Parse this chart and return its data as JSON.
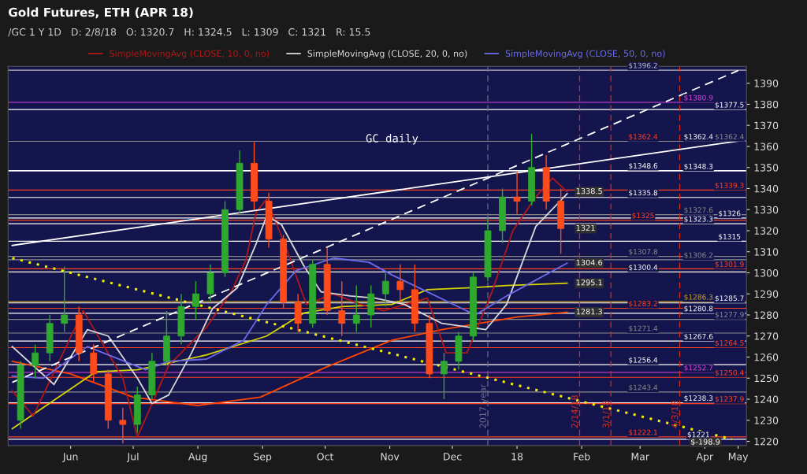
{
  "chart_data": {
    "type": "candlestick",
    "title": "Gold Futures, ETH (APR 18)",
    "subtitle": "/GC 1 Y 1D   D: 2/8/18   O: 1320.7   H: 1324.5   L: 1309   C: 1321   R: 15.5",
    "x": [
      "2017-05-22",
      "2017-05-29",
      "2017-06-05",
      "2017-06-12",
      "2017-06-19",
      "2017-06-26",
      "2017-07-03",
      "2017-07-10",
      "2017-07-17",
      "2017-07-24",
      "2017-07-31",
      "2017-08-07",
      "2017-08-14",
      "2017-08-21",
      "2017-08-28",
      "2017-09-04",
      "2017-09-11",
      "2017-09-18",
      "2017-09-25",
      "2017-10-02",
      "2017-10-09",
      "2017-10-16",
      "2017-10-23",
      "2017-10-30",
      "2017-11-06",
      "2017-11-13",
      "2017-11-20",
      "2017-11-27",
      "2017-12-04",
      "2017-12-11",
      "2017-12-18",
      "2017-12-25",
      "2018-01-01",
      "2018-01-08",
      "2018-01-15",
      "2018-01-22",
      "2018-01-29",
      "2018-02-05"
    ],
    "ohlc": [
      [
        1230,
        1258,
        1226,
        1256
      ],
      [
        1256,
        1266,
        1250,
        1262
      ],
      [
        1262,
        1280,
        1258,
        1276
      ],
      [
        1276,
        1303,
        1272,
        1280
      ],
      [
        1280,
        1284,
        1258,
        1262
      ],
      [
        1262,
        1266,
        1248,
        1252
      ],
      [
        1252,
        1254,
        1226,
        1230
      ],
      [
        1230,
        1236,
        1219,
        1228
      ],
      [
        1228,
        1246,
        1224,
        1242
      ],
      [
        1242,
        1262,
        1240,
        1258
      ],
      [
        1258,
        1282,
        1256,
        1270
      ],
      [
        1270,
        1290,
        1266,
        1284
      ],
      [
        1284,
        1296,
        1278,
        1290
      ],
      [
        1290,
        1304,
        1286,
        1300
      ],
      [
        1300,
        1334,
        1298,
        1330
      ],
      [
        1330,
        1358,
        1328,
        1352
      ],
      [
        1352,
        1362,
        1330,
        1334
      ],
      [
        1334,
        1338,
        1312,
        1316
      ],
      [
        1316,
        1318,
        1283,
        1286
      ],
      [
        1286,
        1290,
        1272,
        1276
      ],
      [
        1276,
        1306,
        1274,
        1304
      ],
      [
        1304,
        1312,
        1280,
        1282
      ],
      [
        1282,
        1296,
        1270,
        1276
      ],
      [
        1276,
        1294,
        1272,
        1280
      ],
      [
        1280,
        1294,
        1274,
        1290
      ],
      [
        1290,
        1300,
        1284,
        1296
      ],
      [
        1296,
        1304,
        1286,
        1292
      ],
      [
        1292,
        1304,
        1272,
        1276
      ],
      [
        1276,
        1280,
        1250,
        1252
      ],
      [
        1252,
        1262,
        1240,
        1258
      ],
      [
        1258,
        1272,
        1254,
        1270
      ],
      [
        1270,
        1300,
        1268,
        1298
      ],
      [
        1298,
        1326,
        1296,
        1320
      ],
      [
        1320,
        1340,
        1314,
        1336
      ],
      [
        1336,
        1348,
        1328,
        1334
      ],
      [
        1334,
        1366,
        1332,
        1350
      ],
      [
        1350,
        1356,
        1330,
        1334
      ],
      [
        1334,
        1340,
        1309,
        1321
      ]
    ],
    "colors": [
      "#2fa82f",
      "#2fa82f",
      "#2fa82f",
      "#2fa82f",
      "#ff4a1a",
      "#ff4a1a",
      "#ff4a1a",
      "#ff4a1a",
      "#2fa82f",
      "#2fa82f",
      "#2fa82f",
      "#2fa82f",
      "#2fa82f",
      "#2fa82f",
      "#2fa82f",
      "#2fa82f",
      "#ff4a1a",
      "#ff4a1a",
      "#ff4a1a",
      "#ff4a1a",
      "#2fa82f",
      "#ff4a1a",
      "#ff4a1a",
      "#2fa82f",
      "#2fa82f",
      "#2fa82f",
      "#ff4a1a",
      "#ff4a1a",
      "#ff4a1a",
      "#2fa82f",
      "#2fa82f",
      "#2fa82f",
      "#2fa82f",
      "#2fa82f",
      "#ff4a1a",
      "#2fa82f",
      "#ff4a1a",
      "#ff4a1a"
    ],
    "series": [
      {
        "type": "line",
        "color": "#ff4500",
        "line_style": "solid",
        "x": [
          "2017-05-18",
          "2017-06-15",
          "2017-07-15",
          "2017-08-15",
          "2017-09-14",
          "2017-10-15",
          "2017-11-16",
          "2017-12-10",
          "2018-01-15",
          "2018-02-08"
        ],
        "values": [
          1258,
          1252,
          1241,
          1237,
          1241,
          1255,
          1268,
          1273,
          1279,
          1281.3
        ]
      },
      {
        "type": "line",
        "color": "#d4d400",
        "line_style": "solid",
        "x": [
          "2017-05-18",
          "2017-06-27",
          "2017-07-17",
          "2017-08-19",
          "2017-09-17",
          "2017-10-05",
          "2017-10-23",
          "2017-11-16",
          "2017-12-03",
          "2017-12-26",
          "2018-01-10",
          "2018-02-08"
        ],
        "values": [
          1226,
          1253,
          1254,
          1261,
          1270,
          1281,
          1284,
          1285,
          1292,
          1293,
          1294,
          1295.1
        ]
      },
      {
        "type": "line",
        "name": "SimpleMovingAvg (CLOSE, 10, 0, no)",
        "color": "#b01818",
        "line_style": "solid",
        "x": [
          "2017-05-18",
          "2017-05-28",
          "2017-06-21",
          "2017-07-10",
          "2017-07-17",
          "2017-08-01",
          "2017-08-19",
          "2017-08-31",
          "2017-09-07",
          "2017-09-12",
          "2017-09-17",
          "2017-09-27",
          "2017-10-06",
          "2017-10-19",
          "2017-11-01",
          "2017-11-12",
          "2017-12-03",
          "2017-12-12",
          "2017-12-22",
          "2018-01-03",
          "2018-01-13",
          "2018-01-24",
          "2018-02-01",
          "2018-02-08"
        ],
        "values": [
          1244,
          1232,
          1282,
          1250,
          1222,
          1256,
          1274,
          1291,
          1306,
          1329,
          1335,
          1310,
          1285,
          1290,
          1285,
          1282,
          1288,
          1262,
          1262,
          1291,
          1320,
          1336,
          1345,
          1338.5
        ]
      },
      {
        "type": "line",
        "name": "SimpleMovingAvg (CLOSE, 20, 0, no)",
        "color": "#d8d8d8",
        "line_style": "solid",
        "x": [
          "2017-05-18",
          "2017-06-07",
          "2017-06-23",
          "2017-07-03",
          "2017-07-17",
          "2017-07-24",
          "2017-08-01",
          "2017-08-12",
          "2017-08-22",
          "2017-09-03",
          "2017-09-12",
          "2017-09-17",
          "2017-09-24",
          "2017-10-05",
          "2017-10-13",
          "2017-10-27",
          "2017-11-08",
          "2017-11-22",
          "2017-12-10",
          "2017-12-31",
          "2018-01-10",
          "2018-01-24",
          "2018-02-08"
        ],
        "values": [
          1265,
          1247,
          1273,
          1270,
          1250,
          1238,
          1242,
          1262,
          1283,
          1293,
          1314,
          1327,
          1323,
          1303,
          1291,
          1289,
          1288,
          1285,
          1276,
          1273,
          1285,
          1322,
          1337.5
        ]
      },
      {
        "type": "line",
        "name": "SimpleMovingAvg (CLOSE, 50, 0, no)",
        "color": "#6a6ae8",
        "line_style": "solid",
        "x": [
          "2017-05-18",
          "2017-06-02",
          "2017-06-23",
          "2017-07-21",
          "2017-08-01",
          "2017-08-19",
          "2017-09-06",
          "2017-09-17",
          "2017-10-01",
          "2017-10-19",
          "2017-11-05",
          "2017-11-16",
          "2017-12-03",
          "2017-12-26",
          "2018-01-10",
          "2018-02-08"
        ],
        "values": [
          1251,
          1250,
          1265,
          1254,
          1258,
          1259,
          1268,
          1285,
          1301,
          1307,
          1305,
          1299,
          1291,
          1280,
          1289,
          1304.6
        ]
      },
      {
        "type": "line",
        "color": "#f0f000",
        "line_style": "dotted",
        "x": [
          "2017-05-18",
          "2018-04-28"
        ],
        "values": [
          1307,
          1221
        ]
      },
      {
        "type": "line",
        "color": "#ffffff",
        "line_style": "dashed",
        "x": [
          "2017-05-18",
          "2018-05-01"
        ],
        "values": [
          1248,
          1396
        ]
      },
      {
        "type": "line",
        "color": "#ffffff",
        "line_style": "solid",
        "x": [
          "2017-05-18",
          "2018-05-04"
        ],
        "values": [
          1313,
          1363
        ]
      }
    ],
    "ref_lines": [
      {
        "axis": "y",
        "value": 1396.2,
        "label": "$1396.2",
        "color": "#bbbbbb"
      },
      {
        "axis": "y",
        "value": 1380.9,
        "label": "$1380.9",
        "color": "#e040e0"
      },
      {
        "axis": "y",
        "value": 1377.5,
        "label": "$1377.5",
        "color": "#ffffff"
      },
      {
        "axis": "y",
        "value": 1362.4,
        "label": "$1362.4",
        "color": "#ff4020"
      },
      {
        "axis": "y",
        "value": 1362.4,
        "label": "$1362.4",
        "color": "#ffffff"
      },
      {
        "axis": "y",
        "value": 1362.4,
        "label": "$1362.4",
        "color": "#8a8a8a"
      },
      {
        "axis": "y",
        "value": 1348.6,
        "label": "$1348.6",
        "color": "#ffffff"
      },
      {
        "axis": "y",
        "value": 1348.3,
        "label": "$1348.3",
        "color": "#ffffff"
      },
      {
        "axis": "y",
        "value": 1339.3,
        "label": "$1339.3",
        "color": "#ff4020"
      },
      {
        "axis": "y",
        "value": 1335.8,
        "label": "$1335.8",
        "color": "#ffffff"
      },
      {
        "axis": "y",
        "value": 1327.6,
        "label": "$1327.6",
        "color": "#8a8a8a"
      },
      {
        "axis": "y",
        "value": 1326,
        "label": "$1326",
        "color": "#ffffff"
      },
      {
        "axis": "y",
        "value": 1325,
        "label": "$1325",
        "color": "#ff4020"
      },
      {
        "axis": "y",
        "value": 1323.3,
        "label": "$1323.3",
        "color": "#ffffff"
      },
      {
        "axis": "y",
        "value": 1315,
        "label": "$1315",
        "color": "#ffffff"
      },
      {
        "axis": "y",
        "value": 1307.8,
        "label": "$1307.8",
        "color": "#8a8a8a"
      },
      {
        "axis": "y",
        "value": 1306.2,
        "label": "$1306.2",
        "color": "#8a8a8a"
      },
      {
        "axis": "y",
        "value": 1301.9,
        "label": "$1301.9",
        "color": "#ff4020"
      },
      {
        "axis": "y",
        "value": 1300.4,
        "label": "$1300.4",
        "color": "#ffffff"
      },
      {
        "axis": "y",
        "value": 1286.3,
        "label": "$1286.3",
        "color": "#c8a020"
      },
      {
        "axis": "y",
        "value": 1285.7,
        "label": "$1285.7",
        "color": "#ffffff"
      },
      {
        "axis": "y",
        "value": 1283.2,
        "label": "$1283.2",
        "color": "#ff4020"
      },
      {
        "axis": "y",
        "value": 1280.8,
        "label": "$1280.8",
        "color": "#ffffff"
      },
      {
        "axis": "y",
        "value": 1277.9,
        "label": "$1277.9",
        "color": "#8a8a8a"
      },
      {
        "axis": "y",
        "value": 1271.4,
        "label": "$1271.4",
        "color": "#8a8a8a"
      },
      {
        "axis": "y",
        "value": 1267.6,
        "label": "$1267.6",
        "color": "#ffffff"
      },
      {
        "axis": "y",
        "value": 1264.5,
        "label": "$1264.5",
        "color": "#ff4020"
      },
      {
        "axis": "y",
        "value": 1256.4,
        "label": "$1256.4",
        "color": "#ffffff"
      },
      {
        "axis": "y",
        "value": 1252.7,
        "label": "$1252.7",
        "color": "#e040e0"
      },
      {
        "axis": "y",
        "value": 1250.4,
        "label": "$1250.4",
        "color": "#ff4020"
      },
      {
        "axis": "y",
        "value": 1243.4,
        "label": "$1243.4",
        "color": "#8a8a8a"
      },
      {
        "axis": "y",
        "value": 1238.3,
        "label": "$1238.3",
        "color": "#ffffff"
      },
      {
        "axis": "y",
        "value": 1237.9,
        "label": "$1237.9",
        "color": "#ff4020"
      },
      {
        "axis": "y",
        "value": 1222.1,
        "label": "$1222.1",
        "color": "#ff4020"
      },
      {
        "axis": "y",
        "value": 1221,
        "label": "$1221",
        "color": "#ffffff"
      },
      {
        "axis": "x",
        "value": "2018-01-01",
        "label": "2017 year",
        "color": "#6a6a8a",
        "line_style": "dashed"
      },
      {
        "axis": "x",
        "value": "2018-02-14",
        "label": "2/14/18",
        "color": "#d03020",
        "line_style": "dashed"
      },
      {
        "axis": "x",
        "value": "2018-03-01",
        "label": "3/1/18",
        "color": "#d03020",
        "line_style": "dashed"
      },
      {
        "axis": "x",
        "value": "2018-04-03",
        "label": "4/3/18",
        "color": "#d03020",
        "line_style": "dashed"
      }
    ],
    "annotations": [
      "GC daily",
      {
        "text": "1338.5",
        "x": "2018-02-08",
        "y": 1338.5
      },
      {
        "text": "1321",
        "x": "2018-02-08",
        "y": 1321
      },
      {
        "text": "1304.6",
        "x": "2018-02-08",
        "y": 1304.6
      },
      {
        "text": "1295.1",
        "x": "2018-02-08",
        "y": 1295.1
      },
      {
        "text": "1281.3",
        "x": "2018-02-08",
        "y": 1281.3
      },
      {
        "text": "$-198.9",
        "x": "2018-04-04",
        "y": 1219.5
      }
    ],
    "xlim": [
      "2017-05-16",
      "2018-05-05"
    ],
    "xticks": [
      {
        "value": "2017-06-15",
        "label": "Jun"
      },
      {
        "value": "2017-07-15",
        "label": "Jul"
      },
      {
        "value": "2017-08-15",
        "label": "Aug"
      },
      {
        "value": "2017-09-15",
        "label": "Sep"
      },
      {
        "value": "2017-10-15",
        "label": "Oct"
      },
      {
        "value": "2017-11-15",
        "label": "Nov"
      },
      {
        "value": "2017-12-15",
        "label": "Dec"
      },
      {
        "value": "2018-01-15",
        "label": "18"
      },
      {
        "value": "2018-02-15",
        "label": "Feb"
      },
      {
        "value": "2018-03-15",
        "label": "Mar"
      },
      {
        "value": "2018-04-15",
        "label": "Apr"
      },
      {
        "value": "2018-05-01",
        "label": "May"
      }
    ],
    "ylim": [
      1218,
      1398
    ],
    "yticks": [
      1220,
      1230,
      1240,
      1250,
      1260,
      1270,
      1280,
      1290,
      1300,
      1310,
      1320,
      1330,
      1340,
      1350,
      1360,
      1370,
      1380,
      1390
    ],
    "legend": "top",
    "grid": false
  }
}
